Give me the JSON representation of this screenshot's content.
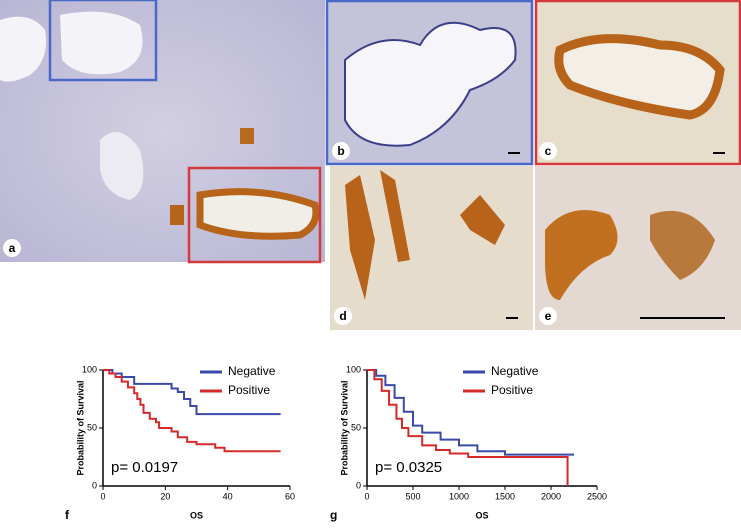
{
  "panels": {
    "labels": [
      "a",
      "b",
      "c",
      "d",
      "e"
    ]
  },
  "chart_data": [
    {
      "type": "line",
      "panel": "f",
      "xlabel": "OS",
      "ylabel": "Probability of Survival",
      "annotation": "p= 0.0197",
      "xlim": [
        0,
        60
      ],
      "xticks": [
        0,
        20,
        40,
        60
      ],
      "ylim": [
        0,
        100
      ],
      "yticks": [
        0,
        50,
        100
      ],
      "legend": "upper right",
      "series": [
        {
          "name": "Negative",
          "color": "#3a4aa8",
          "x": [
            0,
            3,
            6,
            10,
            22,
            24,
            26,
            28,
            30,
            57
          ],
          "values": [
            100,
            97,
            94,
            88,
            84,
            81,
            75,
            69,
            62,
            62
          ]
        },
        {
          "name": "Positive",
          "color": "#d42a2a",
          "x": [
            0,
            2,
            4,
            6,
            8,
            10,
            11,
            12,
            13,
            15,
            17,
            18,
            22,
            24,
            27,
            30,
            36,
            39,
            57
          ],
          "values": [
            100,
            97,
            94,
            90,
            85,
            80,
            75,
            70,
            63,
            58,
            55,
            50,
            47,
            42,
            38,
            36,
            33,
            30,
            30
          ]
        }
      ]
    },
    {
      "type": "line",
      "panel": "g",
      "xlabel": "OS",
      "ylabel": "Probability of Survival",
      "annotation": "p= 0.0325",
      "xlim": [
        0,
        2500
      ],
      "xticks": [
        0,
        500,
        1000,
        1500,
        2000,
        2500
      ],
      "ylim": [
        0,
        100
      ],
      "yticks": [
        0,
        50,
        100
      ],
      "legend": "upper right",
      "series": [
        {
          "name": "Negative",
          "color": "#3a4aa8",
          "x": [
            0,
            100,
            200,
            300,
            400,
            500,
            600,
            800,
            1000,
            1200,
            1500,
            2250
          ],
          "values": [
            100,
            95,
            87,
            76,
            64,
            52,
            46,
            40,
            35,
            30,
            27,
            27
          ]
        },
        {
          "name": "Positive",
          "color": "#d42a2a",
          "x": [
            0,
            80,
            160,
            240,
            320,
            380,
            450,
            600,
            750,
            900,
            1100,
            2180,
            2180
          ],
          "values": [
            100,
            92,
            82,
            70,
            58,
            50,
            43,
            35,
            31,
            28,
            25,
            25,
            0
          ]
        }
      ]
    }
  ]
}
